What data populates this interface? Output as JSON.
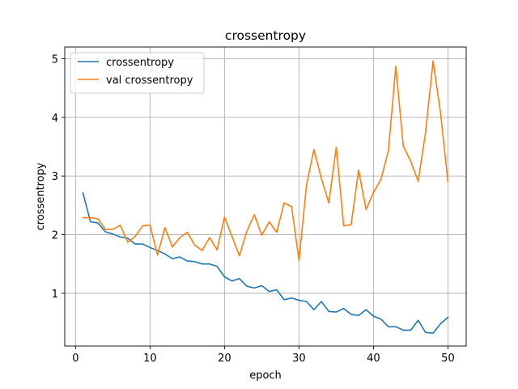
{
  "chart_data": {
    "type": "line",
    "title": "crossentropy",
    "xlabel": "epoch",
    "ylabel": "crossentropy",
    "xlim": [
      -1.45,
      52.45
    ],
    "ylim": [
      0.1,
      5.2
    ],
    "xticks": [
      0,
      10,
      20,
      30,
      40,
      50
    ],
    "yticks": [
      1,
      2,
      3,
      4,
      5
    ],
    "grid": true,
    "legend_position": "top-left",
    "x": [
      1,
      2,
      3,
      4,
      5,
      6,
      7,
      8,
      9,
      10,
      11,
      12,
      13,
      14,
      15,
      16,
      17,
      18,
      19,
      20,
      21,
      22,
      23,
      24,
      25,
      26,
      27,
      28,
      29,
      30,
      31,
      32,
      33,
      34,
      35,
      36,
      37,
      38,
      39,
      40,
      41,
      42,
      43,
      44,
      45,
      46,
      47,
      48,
      49,
      50
    ],
    "series": [
      {
        "name": "crossentropy",
        "color": "#1f77b4",
        "values": [
          2.71,
          2.22,
          2.2,
          2.05,
          2.01,
          1.96,
          1.94,
          1.84,
          1.84,
          1.78,
          1.73,
          1.67,
          1.59,
          1.62,
          1.55,
          1.54,
          1.5,
          1.5,
          1.46,
          1.28,
          1.21,
          1.25,
          1.12,
          1.09,
          1.13,
          1.03,
          1.06,
          0.89,
          0.92,
          0.88,
          0.86,
          0.72,
          0.86,
          0.69,
          0.68,
          0.74,
          0.64,
          0.62,
          0.72,
          0.61,
          0.56,
          0.43,
          0.43,
          0.37,
          0.37,
          0.54,
          0.33,
          0.32,
          0.48,
          0.59
        ]
      },
      {
        "name": "val crossentropy",
        "color": "#ff7f0e",
        "values": [
          2.29,
          2.29,
          2.27,
          2.09,
          2.09,
          2.16,
          1.87,
          1.97,
          2.15,
          2.16,
          1.65,
          2.12,
          1.79,
          1.95,
          2.04,
          1.82,
          1.73,
          1.95,
          1.74,
          2.3,
          1.97,
          1.64,
          2.06,
          2.34,
          1.99,
          2.22,
          2.04,
          2.54,
          2.48,
          1.56,
          2.84,
          3.45,
          2.96,
          2.54,
          3.49,
          2.15,
          2.17,
          3.1,
          2.43,
          2.72,
          2.94,
          3.43,
          4.87,
          3.51,
          3.25,
          2.91,
          3.75,
          4.96,
          4.08,
          2.9
        ]
      }
    ]
  }
}
